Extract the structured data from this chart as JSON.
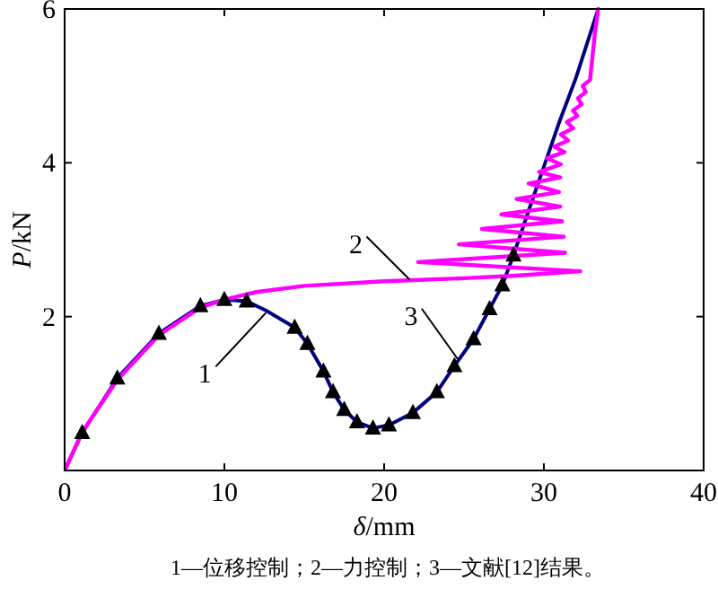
{
  "chart_data": {
    "type": "line",
    "xlabel": "δ/mm",
    "ylabel": "P/kN",
    "xlim": [
      0,
      40
    ],
    "ylim": [
      0,
      6
    ],
    "xticks": [
      0,
      10,
      20,
      30,
      40
    ],
    "yticks": [
      {
        "value": 0,
        "label": null
      },
      2,
      4,
      6
    ],
    "grid": false,
    "series": [
      {
        "color": "#000080",
        "marker": "none",
        "x": [
          0,
          1.1,
          3.3,
          5.9,
          8.5,
          10,
          11.4,
          12.6,
          14.4,
          15.2,
          16.2,
          16.8,
          17.5,
          18.3,
          19.3,
          20.3,
          21.8,
          23.3,
          24.4,
          25.6,
          26.6,
          27.4,
          28.1,
          29,
          30,
          31,
          32,
          33.4
        ],
        "values": [
          0,
          0.49,
          1.2,
          1.78,
          2.14,
          2.22,
          2.2,
          2.08,
          1.86,
          1.65,
          1.29,
          1.02,
          0.79,
          0.63,
          0.55,
          0.59,
          0.75,
          1.02,
          1.36,
          1.71,
          2.1,
          2.41,
          2.8,
          3.35,
          3.95,
          4.55,
          5.1,
          6.0
        ]
      },
      {
        "color": "#ff00ff",
        "marker": "none",
        "x": [
          0,
          1.1,
          3.3,
          5.9,
          8.5,
          10,
          12,
          15,
          20,
          25,
          28,
          32.28,
          22.13,
          31.33,
          24.68,
          31.25,
          26.12,
          31.14,
          27.34,
          31.03,
          28.29,
          30.95,
          29.05,
          31.03,
          29.7,
          31.06,
          30.19,
          31.29,
          30.65,
          31.52,
          31.06,
          31.83,
          31.44,
          32.09,
          31.83,
          32.36,
          32.13,
          32.62,
          32.43,
          32.89,
          33.0,
          33.2,
          33.4
        ],
        "values": [
          0,
          0.5,
          1.18,
          1.76,
          2.12,
          2.22,
          2.32,
          2.4,
          2.46,
          2.5,
          2.53,
          2.59,
          2.71,
          2.83,
          2.94,
          3.04,
          3.14,
          3.24,
          3.33,
          3.43,
          3.53,
          3.62,
          3.73,
          3.81,
          3.88,
          3.98,
          4.06,
          4.14,
          4.21,
          4.29,
          4.37,
          4.45,
          4.53,
          4.61,
          4.68,
          4.76,
          4.84,
          4.92,
          5.0,
          5.08,
          5.3,
          5.7,
          6.0
        ]
      },
      {
        "color": "#000000",
        "type": "scatter",
        "marker": "triangle",
        "x": [
          1.1,
          3.3,
          5.9,
          8.5,
          10,
          11.4,
          14.4,
          15.2,
          16.2,
          16.8,
          17.5,
          18.3,
          19.3,
          20.3,
          21.8,
          23.3,
          24.4,
          25.6,
          26.6,
          27.4,
          28.1
        ],
        "values": [
          0.49,
          1.2,
          1.78,
          2.14,
          2.22,
          2.2,
          1.86,
          1.65,
          1.29,
          1.02,
          0.79,
          0.63,
          0.55,
          0.59,
          0.75,
          1.02,
          1.36,
          1.71,
          2.1,
          2.41,
          2.8
        ]
      }
    ],
    "annotations": [
      {
        "text": "1",
        "x": 12.6,
        "y": 2.05
      },
      {
        "text": "2",
        "x": 21.6,
        "y": 2.48
      },
      {
        "text": "3",
        "x": 24.6,
        "y": 1.45
      },
      "1—位移控制；2—力控制；3—文献[12]结果。"
    ]
  }
}
